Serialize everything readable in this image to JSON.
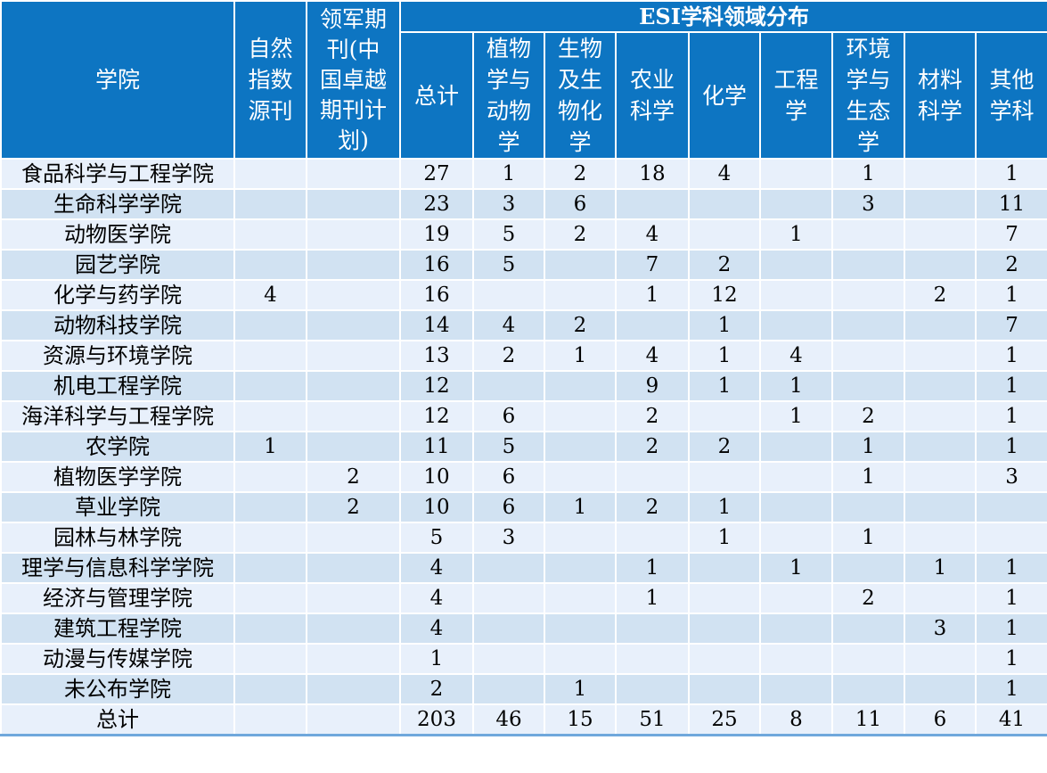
{
  "header": {
    "college": "学院",
    "journal_type_1": "自然\n指数\n源刊",
    "journal_type_2": "领军期\n刊(中\n国卓越\n期刊计\n划)",
    "esi_group": "ESI学科领域分布",
    "esi_columns": [
      "总计",
      "植物\n学与\n动物\n学",
      "生物\n及生\n物化\n学",
      "农业\n科学",
      "化学",
      "工程\n学",
      "环境\n学与\n生态\n学",
      "材料\n科学",
      "其他\n学科"
    ]
  },
  "rows": [
    {
      "college": "食品科学与工程学院",
      "cells": [
        "",
        "",
        "27",
        "1",
        "2",
        "18",
        "4",
        "",
        "1",
        "",
        "1"
      ]
    },
    {
      "college": "生命科学学院",
      "cells": [
        "",
        "",
        "23",
        "3",
        "6",
        "",
        "",
        "",
        "3",
        "",
        "11"
      ]
    },
    {
      "college": "动物医学院",
      "cells": [
        "",
        "",
        "19",
        "5",
        "2",
        "4",
        "",
        "1",
        "",
        "",
        "7"
      ]
    },
    {
      "college": "园艺学院",
      "cells": [
        "",
        "",
        "16",
        "5",
        "",
        "7",
        "2",
        "",
        "",
        "",
        "2"
      ]
    },
    {
      "college": "化学与药学院",
      "cells": [
        "4",
        "",
        "16",
        "",
        "",
        "1",
        "12",
        "",
        "",
        "2",
        "1"
      ]
    },
    {
      "college": "动物科技学院",
      "cells": [
        "",
        "",
        "14",
        "4",
        "2",
        "",
        "1",
        "",
        "",
        "",
        "7"
      ]
    },
    {
      "college": "资源与环境学院",
      "cells": [
        "",
        "",
        "13",
        "2",
        "1",
        "4",
        "1",
        "4",
        "",
        "",
        "1"
      ]
    },
    {
      "college": "机电工程学院",
      "cells": [
        "",
        "",
        "12",
        "",
        "",
        "9",
        "1",
        "1",
        "",
        "",
        "1"
      ]
    },
    {
      "college": "海洋科学与工程学院",
      "cells": [
        "",
        "",
        "12",
        "6",
        "",
        "2",
        "",
        "1",
        "2",
        "",
        "1"
      ]
    },
    {
      "college": "农学院",
      "cells": [
        "1",
        "",
        "11",
        "5",
        "",
        "2",
        "2",
        "",
        "1",
        "",
        "1"
      ]
    },
    {
      "college": "植物医学学院",
      "cells": [
        "",
        "2",
        "10",
        "6",
        "",
        "",
        "",
        "",
        "1",
        "",
        "3"
      ]
    },
    {
      "college": "草业学院",
      "cells": [
        "",
        "2",
        "10",
        "6",
        "1",
        "2",
        "1",
        "",
        "",
        "",
        ""
      ]
    },
    {
      "college": "园林与林学院",
      "cells": [
        "",
        "",
        "5",
        "3",
        "",
        "",
        "1",
        "",
        "1",
        "",
        ""
      ]
    },
    {
      "college": "理学与信息科学学院",
      "cells": [
        "",
        "",
        "4",
        "",
        "",
        "1",
        "",
        "1",
        "",
        "1",
        "1"
      ]
    },
    {
      "college": "经济与管理学院",
      "cells": [
        "",
        "",
        "4",
        "",
        "",
        "1",
        "",
        "",
        "2",
        "",
        "1"
      ]
    },
    {
      "college": "建筑工程学院",
      "cells": [
        "",
        "",
        "4",
        "",
        "",
        "",
        "",
        "",
        "",
        "3",
        "1"
      ]
    },
    {
      "college": "动漫与传媒学院",
      "cells": [
        "",
        "",
        "1",
        "",
        "",
        "",
        "",
        "",
        "",
        "",
        "1"
      ]
    },
    {
      "college": "未公布学院",
      "cells": [
        "",
        "",
        "2",
        "",
        "1",
        "",
        "",
        "",
        "",
        "",
        "1"
      ]
    },
    {
      "college": "总计",
      "cells": [
        "",
        "",
        "203",
        "46",
        "15",
        "51",
        "25",
        "8",
        "11",
        "6",
        "41"
      ]
    }
  ],
  "colors": {
    "header_bg": "#0d75c2",
    "row_light": "#e8f0fb",
    "row_dark": "#d1e2f2"
  }
}
